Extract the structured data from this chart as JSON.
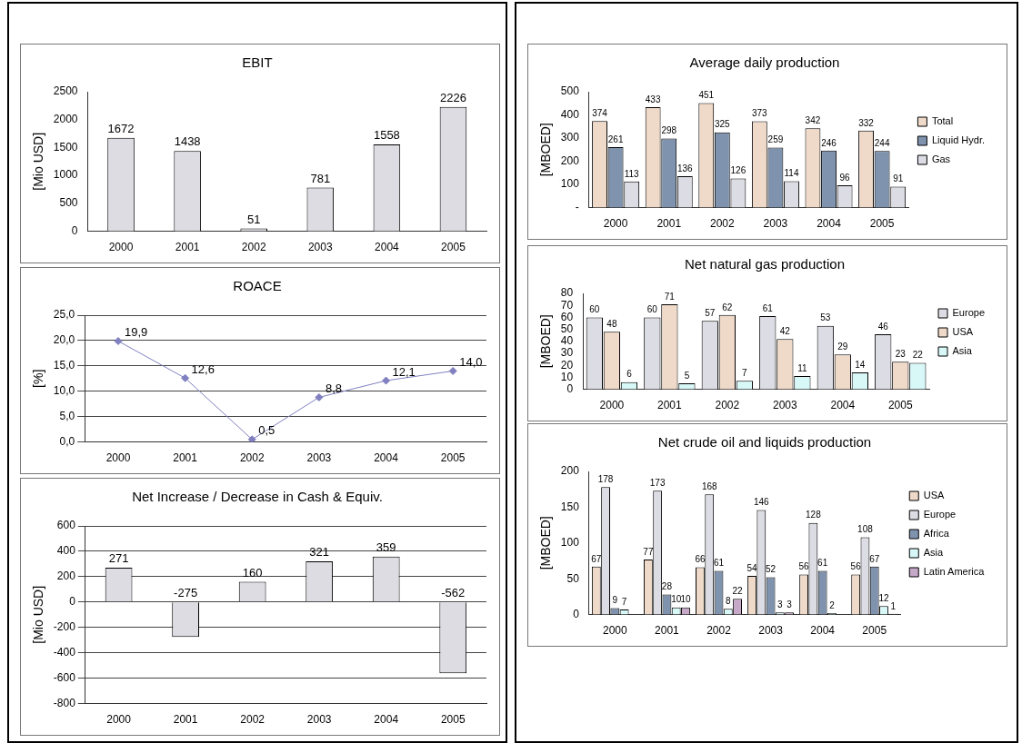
{
  "chart_data": [
    {
      "type": "bar",
      "title": "EBIT",
      "ylabel": "[Mio USD]",
      "categories": [
        "2000",
        "2001",
        "2002",
        "2003",
        "2004",
        "2005"
      ],
      "values": [
        1672,
        1438,
        51,
        781,
        1558,
        2226
      ],
      "color": "#dcdce2",
      "ylim": [
        0,
        2500
      ],
      "yticks": [
        0,
        500,
        1000,
        1500,
        2000,
        2500
      ],
      "data_labels": true
    },
    {
      "type": "line",
      "title": "ROACE",
      "ylabel": "[%]",
      "categories": [
        "2000",
        "2001",
        "2002",
        "2003",
        "2004",
        "2005"
      ],
      "values": [
        19.9,
        12.6,
        0.5,
        8.8,
        12.1,
        14.0
      ],
      "value_labels": [
        "19,9",
        "12,6",
        "0,5",
        "8,8",
        "12,1",
        "14,0"
      ],
      "color": "#8080c0",
      "marker": "diamond",
      "ylim": [
        0,
        25
      ],
      "yticks": [
        {
          "value": 0,
          "label": "0,0"
        },
        {
          "value": 5,
          "label": "5,0"
        },
        {
          "value": 10,
          "label": "10,0"
        },
        {
          "value": 15,
          "label": "15,0"
        },
        {
          "value": 20,
          "label": "20,0"
        },
        {
          "value": 25,
          "label": "25,0"
        }
      ],
      "grid": "y"
    },
    {
      "type": "bar",
      "title": "Net Increase / Decrease in Cash & Equiv.",
      "ylabel": "[Mio USD]",
      "categories": [
        "2000",
        "2001",
        "2002",
        "2003",
        "2004",
        "2005"
      ],
      "values": [
        271,
        -275,
        160,
        321,
        359,
        -562
      ],
      "color": "#dcdce2",
      "ylim": [
        -800,
        600
      ],
      "yticks": [
        -800,
        -600,
        -400,
        -200,
        0,
        200,
        400,
        600
      ],
      "grid": "y",
      "data_labels": true
    },
    {
      "type": "bar",
      "title": "Average daily production",
      "ylabel": "[MBOED]",
      "categories": [
        "2000",
        "2001",
        "2002",
        "2003",
        "2004",
        "2005"
      ],
      "series": [
        {
          "name": "Total",
          "color": "#efd9c8",
          "values": [
            374,
            433,
            451,
            373,
            342,
            332
          ]
        },
        {
          "name": "Liquid Hydr.",
          "color": "#7f93ae",
          "values": [
            261,
            298,
            325,
            259,
            246,
            244
          ]
        },
        {
          "name": "Gas",
          "color": "#dcdce4",
          "values": [
            113,
            136,
            126,
            114,
            96,
            91
          ]
        }
      ],
      "ylim": [
        0,
        500
      ],
      "yticks": [
        {
          "value": 0,
          "label": "-"
        },
        100,
        200,
        300,
        400,
        500
      ],
      "legend": "right",
      "data_labels": true
    },
    {
      "type": "bar",
      "title": "Net natural gas production",
      "ylabel": "[MBOED]",
      "categories": [
        "2000",
        "2001",
        "2002",
        "2003",
        "2004",
        "2005"
      ],
      "series": [
        {
          "name": "Europe",
          "color": "#dcdce4",
          "values": [
            60,
            60,
            57,
            61,
            53,
            46
          ]
        },
        {
          "name": "USA",
          "color": "#efd9c8",
          "values": [
            48,
            71,
            62,
            42,
            29,
            23
          ]
        },
        {
          "name": "Asia",
          "color": "#d8f8f8",
          "values": [
            6,
            5,
            7,
            11,
            14,
            22
          ]
        }
      ],
      "ylim": [
        0,
        80
      ],
      "yticks": [
        0,
        10,
        20,
        30,
        40,
        50,
        60,
        70,
        80
      ],
      "legend": "right",
      "data_labels": true
    },
    {
      "type": "bar",
      "title": "Net crude oil and liquids production",
      "ylabel": "[MBOED]",
      "categories": [
        "2000",
        "2001",
        "2002",
        "2003",
        "2004",
        "2005"
      ],
      "series": [
        {
          "name": "USA",
          "color": "#efd9c8",
          "values": [
            67,
            77,
            66,
            54,
            56,
            56
          ]
        },
        {
          "name": "Europe",
          "color": "#dcdce4",
          "values": [
            178,
            173,
            168,
            146,
            128,
            108
          ]
        },
        {
          "name": "Africa",
          "color": "#7f93ae",
          "values": [
            9,
            28,
            61,
            52,
            61,
            67
          ]
        },
        {
          "name": "Asia",
          "color": "#d8f8f8",
          "values": [
            7,
            10,
            8,
            3,
            2,
            12
          ]
        },
        {
          "name": "Latin America",
          "color": "#c6a8c8",
          "values": [
            null,
            10,
            22,
            3,
            null,
            1
          ]
        }
      ],
      "ylim": [
        0,
        200
      ],
      "yticks": [
        0,
        50,
        100,
        150,
        200
      ],
      "legend": "right",
      "data_labels": true
    }
  ]
}
